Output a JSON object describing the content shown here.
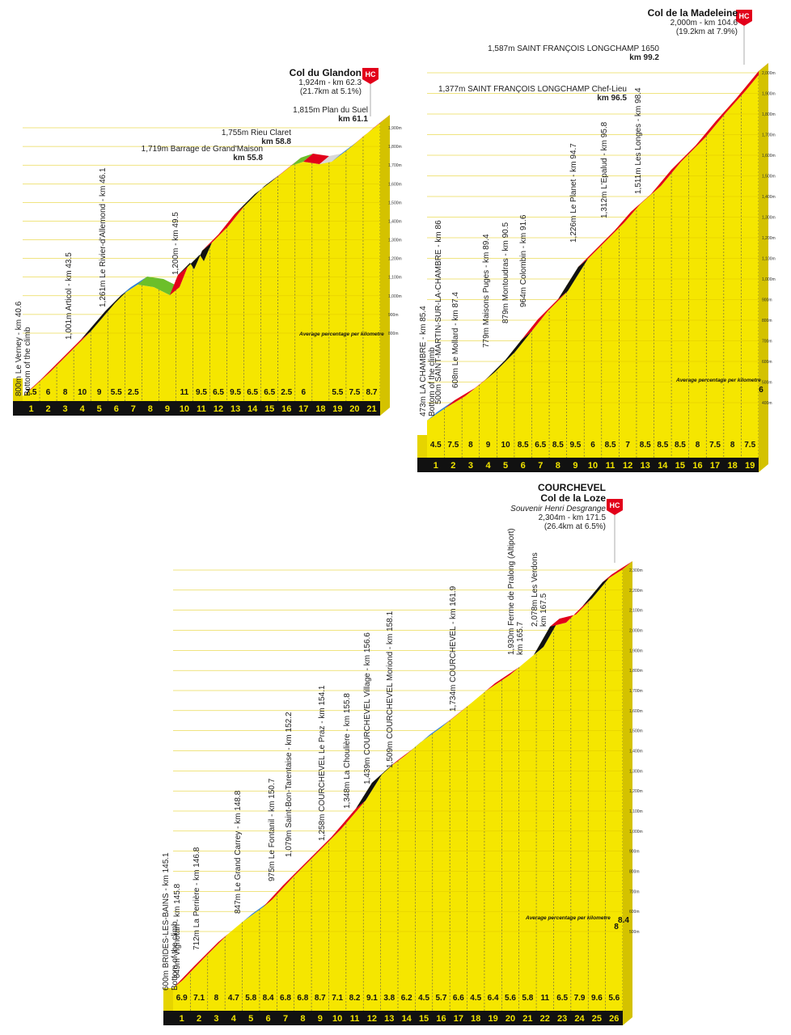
{
  "profiles": [
    {
      "id": "glandon",
      "title": "Col du Glandon",
      "subtitle": "",
      "summit_line": "1,924m - km 62.3",
      "summit_extra": "(21.7km at 5.1%)",
      "category": "HC",
      "avg_label": "Average percentage per kilometre",
      "km_labels": [
        "1",
        "2",
        "3",
        "4",
        "5",
        "6",
        "7",
        "8",
        "9",
        "10",
        "11",
        "12",
        "13",
        "14",
        "15",
        "16",
        "17",
        "18",
        "19",
        "20",
        "21"
      ],
      "gradients": [
        "7.5",
        "6",
        "8",
        "10",
        "9",
        "5.5",
        "2.5",
        "",
        "",
        "11",
        "9.5",
        "6.5",
        "9.5",
        "6.5",
        "6.5",
        "2.5",
        "6",
        "",
        "5.5",
        "7.5",
        "8.7"
      ],
      "alt_ticks": [
        "800m",
        "900m",
        "1,000m",
        "1,100m",
        "1,200m",
        "1,300m",
        "1,400m",
        "1,500m",
        "1,600m",
        "1,700m",
        "1,800m",
        "1,900m"
      ],
      "waypoints": [
        {
          "lines": [
            "800m Le Verney - km 40.6",
            "Bottom of the climb"
          ]
        },
        {
          "lines": [
            "1,001m Articol - km 43.5"
          ]
        },
        {
          "lines": [
            "1,261m Le Rivier-d'Allemond - km 46.1"
          ]
        },
        {
          "lines": [
            "1,200m - km 49.5"
          ]
        }
      ],
      "flat_labels": [
        {
          "lines": [
            "1,719m Barrage de Grand'Maison",
            "km 55.8"
          ]
        },
        {
          "lines": [
            "1,755m Rieu Claret",
            "km 58.8"
          ]
        },
        {
          "lines": [
            "1,815m Plan du Suel",
            "km 61.1"
          ]
        }
      ]
    },
    {
      "id": "madeleine",
      "title": "Col de la Madeleine",
      "subtitle": "",
      "summit_line": "2,000m - km 104.6",
      "summit_extra": "(19.2km at 7.9%)",
      "category": "HC",
      "avg_label": "Average percentage per kilometre",
      "km_labels": [
        "1",
        "2",
        "3",
        "4",
        "5",
        "6",
        "7",
        "8",
        "9",
        "10",
        "11",
        "12",
        "13",
        "14",
        "15",
        "16",
        "17",
        "18",
        "19"
      ],
      "gradients": [
        "4.5",
        "7.5",
        "8",
        "9",
        "10",
        "8.5",
        "6.5",
        "8.5",
        "9.5",
        "6",
        "8.5",
        "7",
        "8.5",
        "8.5",
        "8.5",
        "8",
        "7.5",
        "8",
        "7.5"
      ],
      "last_gradient": "6",
      "alt_ticks": [
        "400m",
        "500m",
        "600m",
        "700m",
        "800m",
        "900m",
        "1,000m",
        "1,100m",
        "1,200m",
        "1,300m",
        "1,400m",
        "1,500m",
        "1,600m",
        "1,700m",
        "1,800m",
        "1,900m",
        "2,000m"
      ],
      "waypoints": [
        {
          "lines": [
            "473m LA CHAMBRE - km 85.4",
            "Bottom of the climb"
          ]
        },
        {
          "lines": [
            "500m SAINT-MARTIN-SUR-LA-CHAMBRE - km 86"
          ]
        },
        {
          "lines": [
            "608m Le Mollard - km 87.4"
          ]
        },
        {
          "lines": [
            "779m Maisons Puges - km 89.4"
          ]
        },
        {
          "lines": [
            "879m Montoudras - km 90.5"
          ]
        },
        {
          "lines": [
            "964m Colombin - km 91.6"
          ]
        },
        {
          "lines": [
            "1,226m Le Planet - km 94.7"
          ]
        },
        {
          "lines": [
            "1,312m L'Epalud - km 95.8"
          ]
        },
        {
          "lines": [
            "1,511m Les Longes - km 98.4"
          ]
        }
      ],
      "flat_labels": [
        {
          "lines": [
            "1,377m SAINT FRANÇOIS LONGCHAMP Chef-Lieu",
            "km 96.5"
          ]
        },
        {
          "lines": [
            "1,587m SAINT FRANÇOIS LONGCHAMP 1650",
            "km 99.2"
          ]
        }
      ]
    },
    {
      "id": "loze",
      "title": "COURCHEVEL",
      "title2": "Col de la Loze",
      "subtitle": "Souvenir Henri Desgrange",
      "summit_line": "2,304m - km 171.5",
      "summit_extra": "(26.4km at 6.5%)",
      "category": "HC",
      "avg_label": "Average percentage per kilometre",
      "km_labels": [
        "1",
        "2",
        "3",
        "4",
        "5",
        "6",
        "7",
        "8",
        "9",
        "10",
        "11",
        "12",
        "13",
        "14",
        "15",
        "16",
        "17",
        "18",
        "19",
        "20",
        "21",
        "22",
        "23",
        "24",
        "25",
        "26"
      ],
      "gradients": [
        "6.9",
        "7.1",
        "8",
        "4.7",
        "5.8",
        "8.4",
        "6.8",
        "6.8",
        "8.7",
        "7.1",
        "8.2",
        "9.1",
        "3.8",
        "6.2",
        "4.5",
        "5.7",
        "6.6",
        "4.5",
        "6.4",
        "5.6",
        "5.8",
        "11",
        "6.5",
        "7.9",
        "9.6",
        "5.6"
      ],
      "extra_gradients": [
        "8",
        "8.4"
      ],
      "alt_ticks": [
        "500m",
        "600m",
        "700m",
        "800m",
        "900m",
        "1,000m",
        "1,100m",
        "1,200m",
        "1,300m",
        "1,400m",
        "1,500m",
        "1,600m",
        "1,700m",
        "1,800m",
        "1,900m",
        "2,000m",
        "2,100m",
        "2,200m",
        "2,300m"
      ],
      "waypoints": [
        {
          "lines": [
            "600m BRIDES-LES-BAINS - km 145.1",
            "Bottom of the climb"
          ]
        },
        {
          "lines": [
            "649m Vignotan - km 145.8"
          ]
        },
        {
          "lines": [
            "712m La Perrière - km 146.8"
          ]
        },
        {
          "lines": [
            "847m Le Grand Carrey - km 148.8"
          ]
        },
        {
          "lines": [
            "975m Le Fontanil - km 150.7"
          ]
        },
        {
          "lines": [
            "1,079m Saint-Bon-Tarentaise - km 152.2"
          ]
        },
        {
          "lines": [
            "1,258m COURCHEVEL Le Praz - km 154.1"
          ]
        },
        {
          "lines": [
            "1,348m La Choulière - km 155.8"
          ]
        },
        {
          "lines": [
            "1,439m COURCHEVEL Village - km 156.6"
          ]
        },
        {
          "lines": [
            "1,509m COURCHEVEL Moriond - km 158.1"
          ]
        },
        {
          "lines": [
            "1,734m COURCHEVEL - km 161.9"
          ]
        },
        {
          "lines": [
            "1,930m Ferme de Pralong (Altiport)",
            "km 165.7"
          ]
        },
        {
          "lines": [
            "2,078m Les Verdons",
            "km 167.5"
          ]
        }
      ],
      "flat_labels": []
    }
  ],
  "colors": {
    "yellow": "#f5e600",
    "red": "#e2001a",
    "black": "#111111",
    "blue": "#2f7fd1",
    "green": "#6cbf2a",
    "grey": "#d8d8d8"
  }
}
